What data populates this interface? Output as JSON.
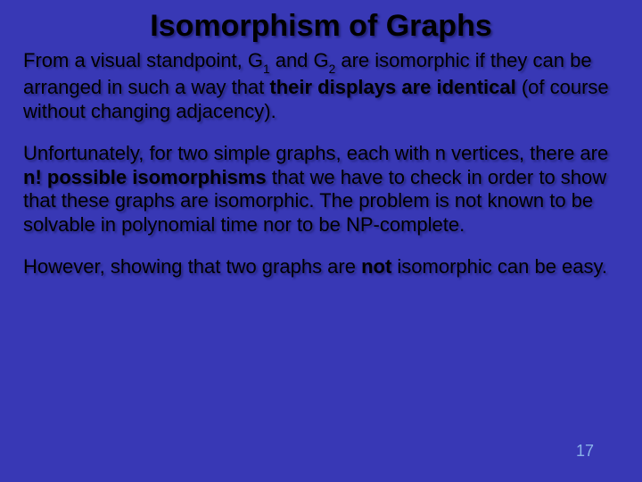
{
  "slide": {
    "title": "Isomorphism of Graphs",
    "para1": {
      "t1": "From a visual standpoint, G",
      "sub1": "1",
      "t2": " and G",
      "sub2": "2",
      "t3": " are isomorphic if they can be arranged in such a way that ",
      "bold1": "their displays are identical",
      "t4": " (of course without changing adjacency)."
    },
    "para2": {
      "t1": "Unfortunately, for two simple graphs, each with n vertices, there are ",
      "bold1": "n! possible isomorphisms",
      "t2": " that we have to check in order to show that these graphs are isomorphic. The problem is not known to be solvable in polynomial time nor to be NP-complete."
    },
    "para3": {
      "t1": "However, showing that two graphs are ",
      "bold1": "not",
      "t2": " isomorphic can be easy."
    },
    "page_number": "17"
  },
  "style": {
    "background_color": "#3838b5",
    "text_color": "#000000",
    "title_fontsize": 34,
    "body_fontsize": 22,
    "page_num_color": "#89b2e8",
    "shadow_color": "rgba(20,20,80,0.55)",
    "font_family": "Comic Sans MS"
  }
}
